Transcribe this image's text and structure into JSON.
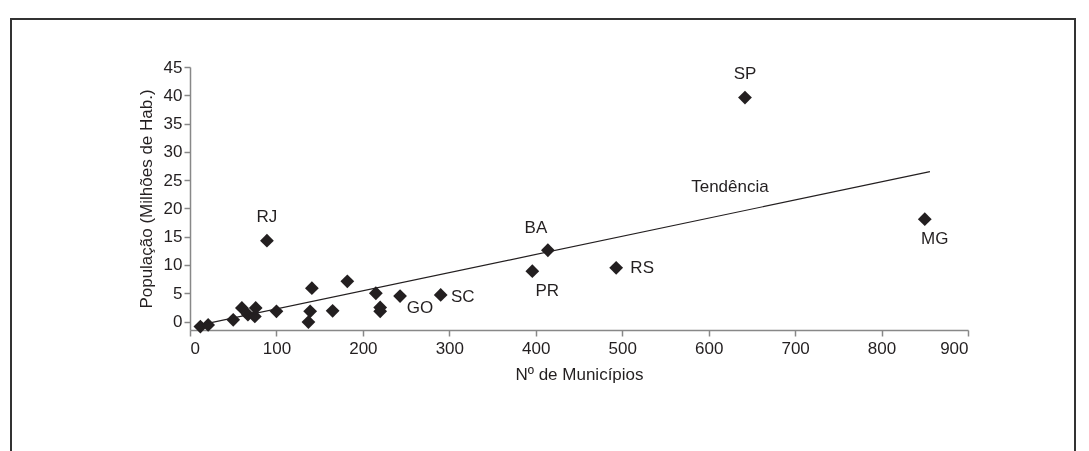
{
  "chart_data": {
    "type": "scatter",
    "xlabel": "Nº de Municípios",
    "ylabel": "População (Milhões de Hab.)",
    "xlim": [
      0,
      900
    ],
    "xticks": [
      0,
      100,
      200,
      300,
      400,
      500,
      600,
      700,
      800,
      900
    ],
    "ylim": [
      -1.5,
      45
    ],
    "yticks": [
      0,
      5,
      10,
      15,
      20,
      25,
      30,
      35,
      40,
      45
    ],
    "grid": false,
    "marker": "diamond",
    "series": [
      {
        "color": "#231f20",
        "x": [
          12,
          21,
          50,
          60,
          67,
          75,
          76,
          100,
          89,
          141,
          139,
          137,
          165,
          182,
          215,
          220,
          220,
          243,
          290,
          396,
          414,
          493,
          642,
          850
        ],
        "values": [
          -0.9,
          -0.6,
          0.3,
          2.4,
          1.2,
          0.9,
          2.4,
          1.8,
          14.3,
          5.9,
          1.8,
          -0.1,
          1.9,
          7.1,
          5.0,
          1.8,
          2.5,
          4.5,
          4.7,
          8.9,
          12.6,
          9.5,
          39.6,
          18.1
        ]
      },
      {
        "type": "line",
        "name": "Tendência",
        "color": "#231f20",
        "marker": "none",
        "x": [
          15,
          856
        ],
        "values": [
          -0.5,
          26.5
        ]
      }
    ],
    "annotations": [
      {
        "text": "SP",
        "x": 642,
        "y": 39.6
      },
      {
        "text": "RJ",
        "x": 89,
        "y": 14.3
      },
      {
        "text": "BA",
        "x": 414,
        "y": 12.6
      },
      {
        "text": "MG",
        "x": 850,
        "y": 18.1
      },
      {
        "text": "PR",
        "x": 396,
        "y": 8.9
      },
      {
        "text": "RS",
        "x": 493,
        "y": 9.5
      },
      {
        "text": "GO",
        "x": 243,
        "y": 4.5
      },
      {
        "text": "SC",
        "x": 290,
        "y": 4.7
      }
    ]
  }
}
